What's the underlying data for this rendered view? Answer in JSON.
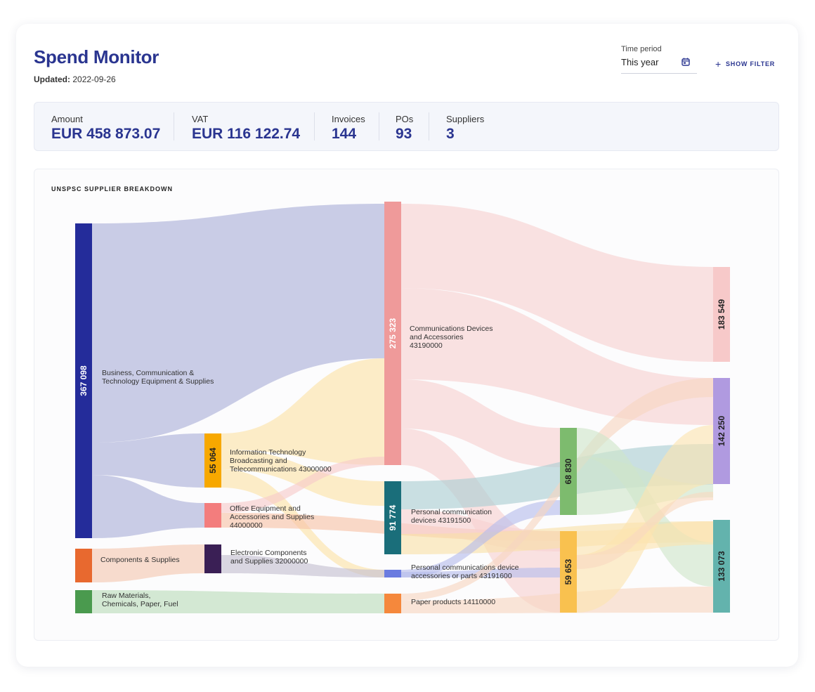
{
  "header": {
    "title": "Spend Monitor",
    "updated_label": "Updated:",
    "updated_value": "2022-09-26"
  },
  "time_period": {
    "label": "Time period",
    "value": "This year",
    "icon": "calendar-icon"
  },
  "filter_button": {
    "label": "SHOW FILTER",
    "icon": "plus-icon"
  },
  "stats": [
    {
      "label": "Amount",
      "value": "EUR 458 873.07"
    },
    {
      "label": "VAT",
      "value": "EUR 116 122.74"
    },
    {
      "label": "Invoices",
      "value": "144"
    },
    {
      "label": "POs",
      "value": "93"
    },
    {
      "label": "Suppliers",
      "value": "3"
    }
  ],
  "chart_title": "UNSPSC SUPPLIER BREAKDOWN",
  "chart_data": {
    "type": "sankey",
    "nodes": [
      {
        "id": "n1",
        "label": "Business, Communication & Technology Equipment & Supplies",
        "value": 367098,
        "value_label": "367 098",
        "color": "#242c9a"
      },
      {
        "id": "n2",
        "label": "Components & Supplies",
        "value": null,
        "value_label": "",
        "color": "#e8692f"
      },
      {
        "id": "n3",
        "label": "Raw Materials, Chemicals, Paper, Fuel",
        "value": null,
        "value_label": "",
        "color": "#4a9a4e"
      },
      {
        "id": "n4",
        "label": "Information Technology Broadcasting and Telecommunications 43000000",
        "value": 55064,
        "value_label": "55 064",
        "color": "#f7a800"
      },
      {
        "id": "n5",
        "label": "Office Equipment and Accessories and Supplies 44000000",
        "value": null,
        "value_label": "",
        "color": "#f37d7d"
      },
      {
        "id": "n6",
        "label": "Electronic Components and Supplies 32000000",
        "value": null,
        "value_label": "",
        "color": "#3a1f55"
      },
      {
        "id": "n7",
        "label": "Communications Devices and Accessories 43190000",
        "value": 275323,
        "value_label": "275 323",
        "color": "#ef9a9a"
      },
      {
        "id": "n8",
        "label": "Personal communication devices 43191500",
        "value": 91774,
        "value_label": "91 774",
        "color": "#1a6e7a"
      },
      {
        "id": "n9",
        "label": "Personal communications device accessories or parts 43191600",
        "value": null,
        "value_label": "",
        "color": "#6a7be0"
      },
      {
        "id": "n10",
        "label": "Paper products 14110000",
        "value": null,
        "value_label": "",
        "color": "#f5883c"
      },
      {
        "id": "n11",
        "label": "",
        "value": 68830,
        "value_label": "68 830",
        "color": "#7dbb6e"
      },
      {
        "id": "n12",
        "label": "",
        "value": 59653,
        "value_label": "59 653",
        "color": "#f9c14f"
      },
      {
        "id": "n13",
        "label": "",
        "value": 183549,
        "value_label": "183 549",
        "color": "#f7c9c9"
      },
      {
        "id": "n14",
        "label": "",
        "value": 142250,
        "value_label": "142 250",
        "color": "#b09ae0"
      },
      {
        "id": "n15",
        "label": "",
        "value": 133073,
        "value_label": "133 073",
        "color": "#63b3ad"
      }
    ],
    "links": [
      {
        "source": "n1",
        "target": "n7",
        "color": "#aaaed8"
      },
      {
        "source": "n1",
        "target": "n4",
        "color": "#aaaed8"
      },
      {
        "source": "n1",
        "target": "n5",
        "color": "#aaaed8"
      },
      {
        "source": "n2",
        "target": "n6",
        "color": "#f3c7b0"
      },
      {
        "source": "n3",
        "target": "n10",
        "color": "#b9dcb9"
      },
      {
        "source": "n4",
        "target": "n7",
        "color": "#fbe2a6"
      },
      {
        "source": "n4",
        "target": "n8",
        "color": "#fbe2a6"
      },
      {
        "source": "n4",
        "target": "n9",
        "color": "#fbe2a6"
      },
      {
        "source": "n5",
        "target": "n7",
        "color": "#f7c9c9"
      },
      {
        "source": "n5",
        "target": "n12",
        "color": "#f7c1a6"
      },
      {
        "source": "n6",
        "target": "n9",
        "color": "#c4bed1"
      },
      {
        "source": "n7",
        "target": "n13",
        "color": "#f7d0d0"
      },
      {
        "source": "n7",
        "target": "n14",
        "color": "#f7d0d0"
      },
      {
        "source": "n7",
        "target": "n11",
        "color": "#f7d0d0"
      },
      {
        "source": "n7",
        "target": "n12",
        "color": "#f7d0d0"
      },
      {
        "source": "n8",
        "target": "n14",
        "color": "#a9cdd2"
      },
      {
        "source": "n8",
        "target": "n12",
        "color": "#f7d0d0"
      },
      {
        "source": "n8",
        "target": "n15",
        "color": "#f9e0a8"
      },
      {
        "source": "n9",
        "target": "n11",
        "color": "#b4bcec"
      },
      {
        "source": "n9",
        "target": "n12",
        "color": "#b4bcec"
      },
      {
        "source": "n10",
        "target": "n15",
        "color": "#f7d5c0"
      },
      {
        "source": "n10",
        "target": "n14",
        "color": "#f7d5c0"
      },
      {
        "source": "n11",
        "target": "n15",
        "color": "#cfe5c9"
      },
      {
        "source": "n11",
        "target": "n14",
        "color": "#cfe5c9"
      },
      {
        "source": "n12",
        "target": "n14",
        "color": "#fbe3b0"
      },
      {
        "source": "n12",
        "target": "n15",
        "color": "#fbe3b0"
      },
      {
        "source": "n12",
        "target": "n13",
        "color": "#f9d8c0"
      }
    ]
  }
}
